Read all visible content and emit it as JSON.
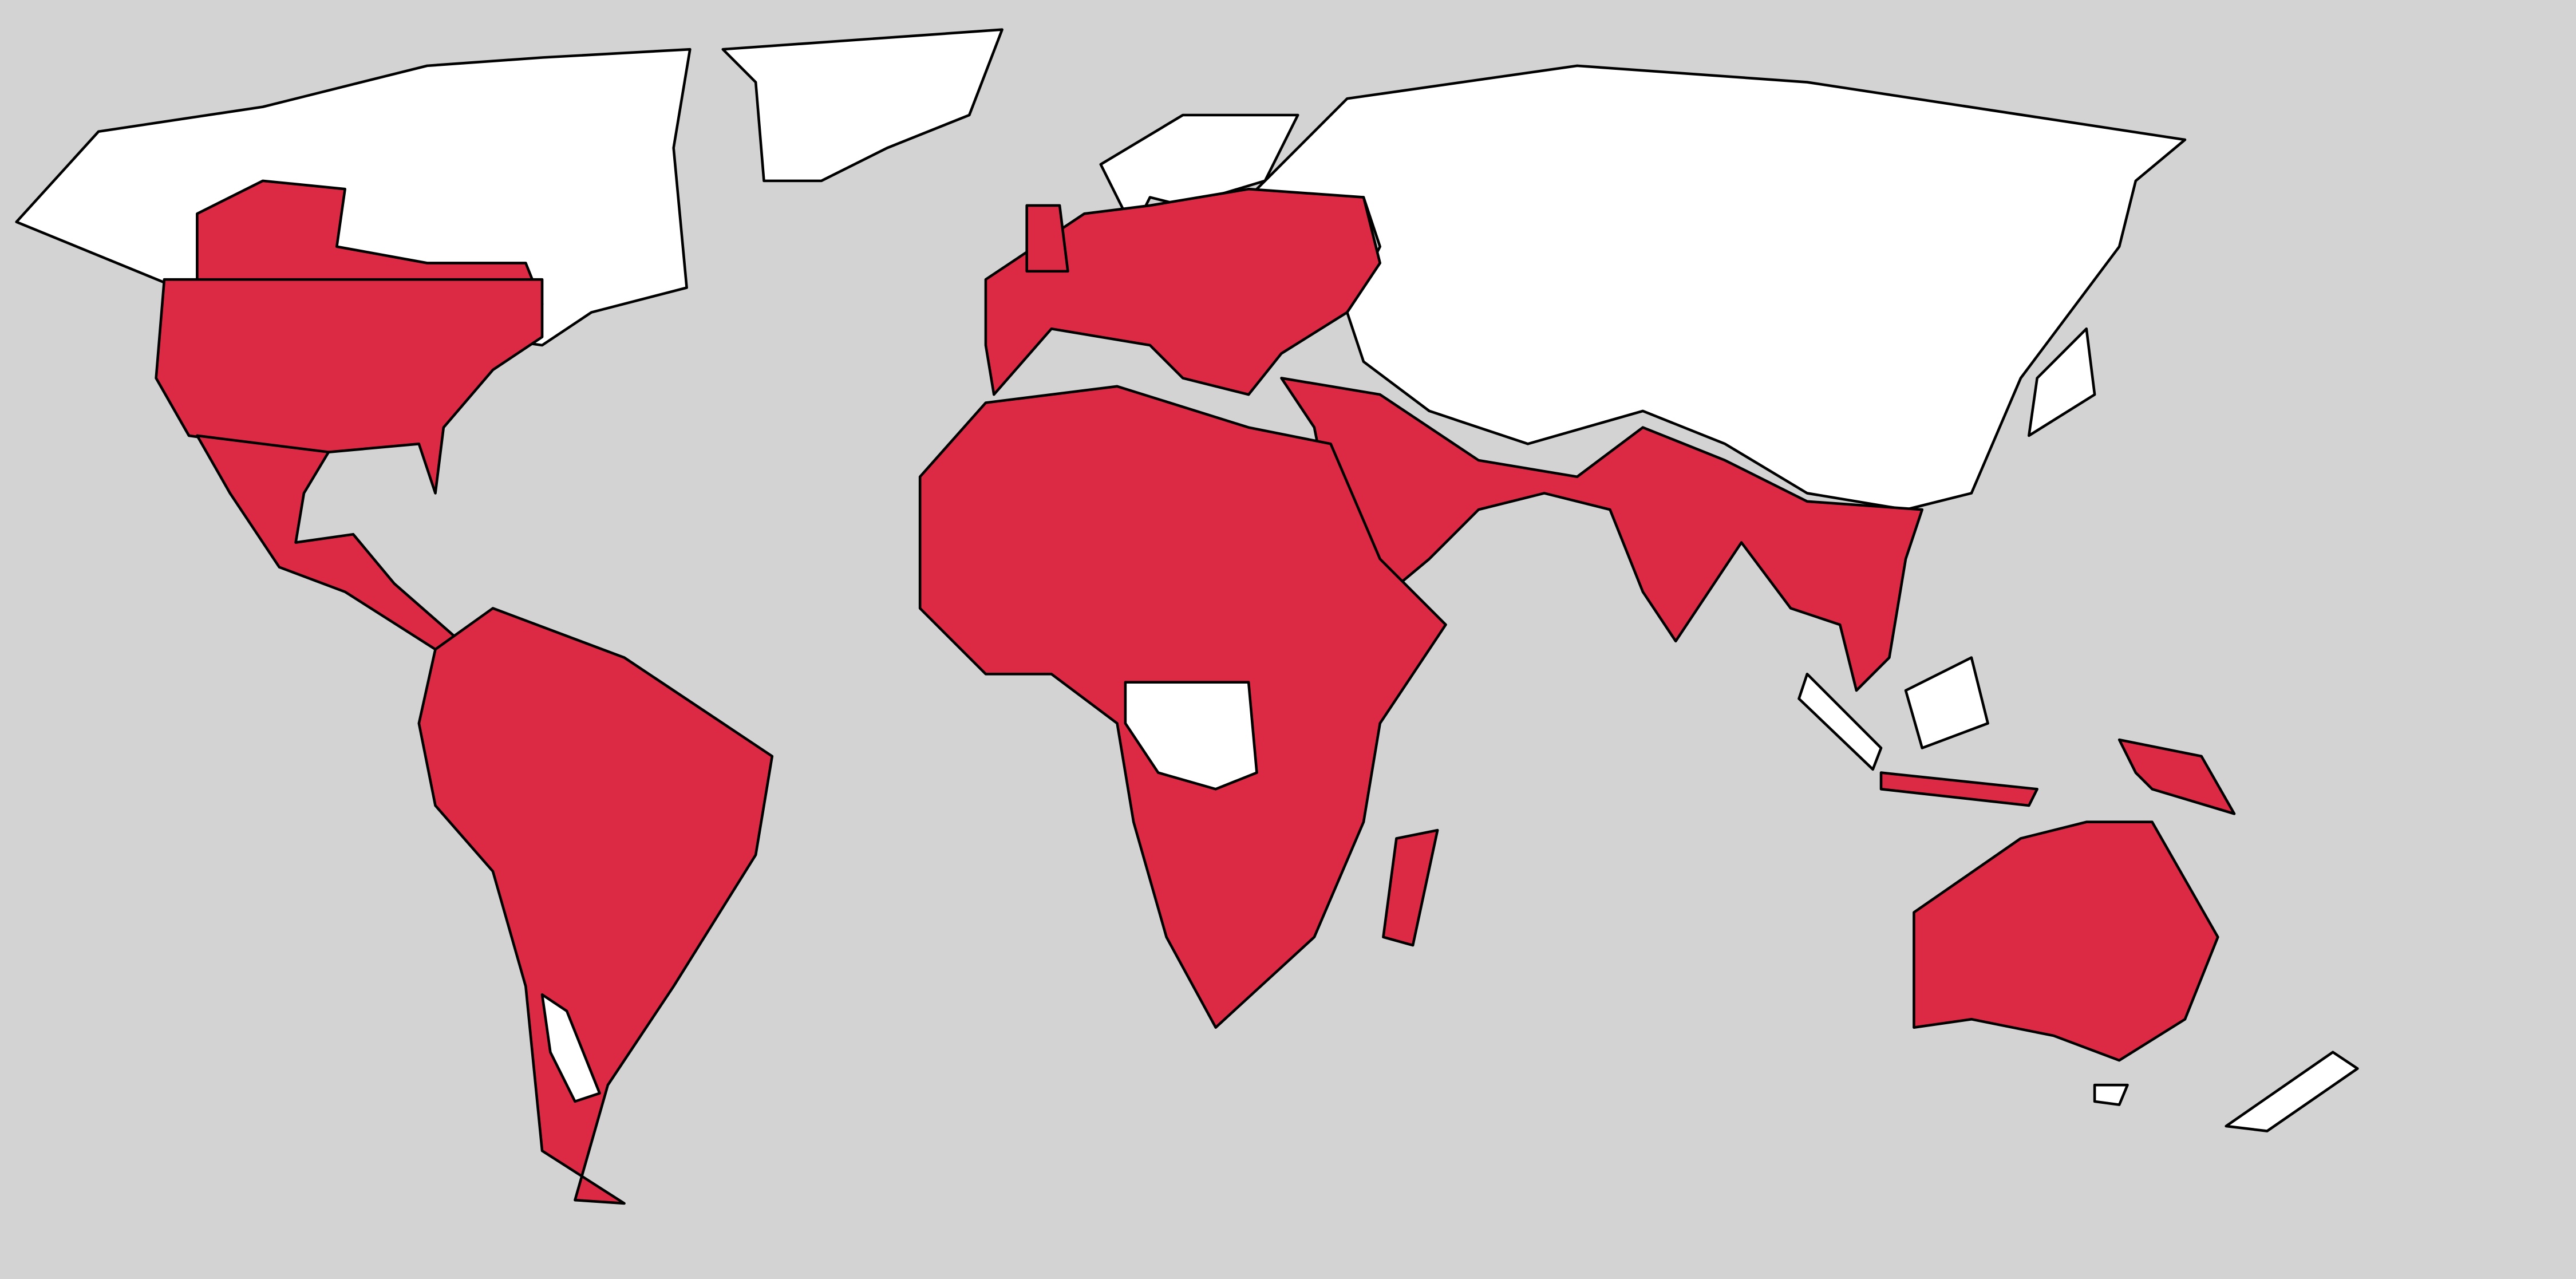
{
  "map": {
    "colors": {
      "ocean": "#d3d3d3",
      "highlighted": "#dc2a45",
      "not_highlighted": "#ffffff",
      "border": "#000000"
    }
  }
}
